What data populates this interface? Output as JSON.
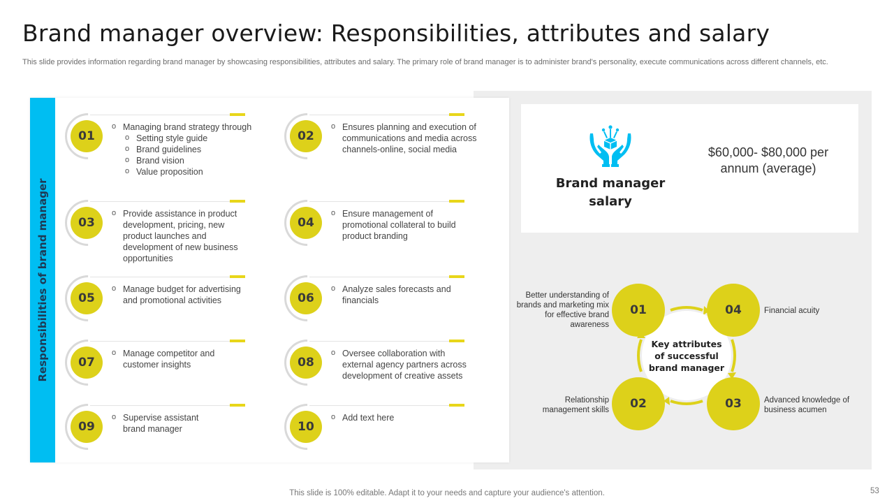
{
  "title": "Brand manager overview: Responsibilities, attributes and salary",
  "subtitle": "This slide provides information regarding brand manager by showcasing responsibilities, attributes and salary. The primary role of brand manager is to administer brand's personality, execute communications across different channels, etc.",
  "responsibilities": {
    "label": "Responsibilities of brand manager",
    "items": [
      {
        "num": "01",
        "lines": [
          {
            "text": "Managing brand strategy through",
            "level": 0
          },
          {
            "text": "Setting style guide",
            "level": 1
          },
          {
            "text": "Brand guidelines",
            "level": 1
          },
          {
            "text": "Brand vision",
            "level": 1
          },
          {
            "text": "Value proposition",
            "level": 1
          }
        ]
      },
      {
        "num": "02",
        "lines": [
          {
            "text": "Ensures planning and execution of communications and media across channels-online, social media",
            "level": 0
          }
        ]
      },
      {
        "num": "03",
        "lines": [
          {
            "text": "Provide assistance in product development, pricing, new product launches and development of new business opportunities",
            "level": 0
          }
        ]
      },
      {
        "num": "04",
        "lines": [
          {
            "text": "Ensure management of promotional collateral to build product branding",
            "level": 0
          }
        ]
      },
      {
        "num": "05",
        "lines": [
          {
            "text": "Manage budget for advertising and promotional activities",
            "level": 0
          }
        ]
      },
      {
        "num": "06",
        "lines": [
          {
            "text": "Analyze sales forecasts and financials",
            "level": 0
          }
        ]
      },
      {
        "num": "07",
        "lines": [
          {
            "text": "Manage competitor and customer insights",
            "level": 0
          }
        ]
      },
      {
        "num": "08",
        "lines": [
          {
            "text": "Oversee collaboration with external agency partners across development of creative assets",
            "level": 0
          }
        ]
      },
      {
        "num": "09",
        "lines": [
          {
            "text": "Supervise assistant brand manager",
            "level": 0
          }
        ]
      },
      {
        "num": "10",
        "lines": [
          {
            "text": "Add text here",
            "level": 0
          }
        ]
      }
    ]
  },
  "salary": {
    "icon": "hands-money-icon",
    "label": "Brand manager salary",
    "value": "$60,000- $80,000 per annum (average)"
  },
  "attributes": {
    "center": "Key attributes of successful brand manager",
    "items": [
      {
        "num": "01",
        "text": "Better understanding of brands and marketing mix for effective brand awareness"
      },
      {
        "num": "02",
        "text": "Relationship management skills"
      },
      {
        "num": "03",
        "text": "Advanced knowledge of business acumen"
      },
      {
        "num": "04",
        "text": "Financial acuity"
      }
    ]
  },
  "footer": "This slide is 100% editable. Adapt it to your needs and capture your audience's attention.",
  "page_number": "53",
  "colors": {
    "accent_yellow": "#ddd11a",
    "accent_blue": "#00bef2",
    "panel_gray": "#eeeeee"
  }
}
